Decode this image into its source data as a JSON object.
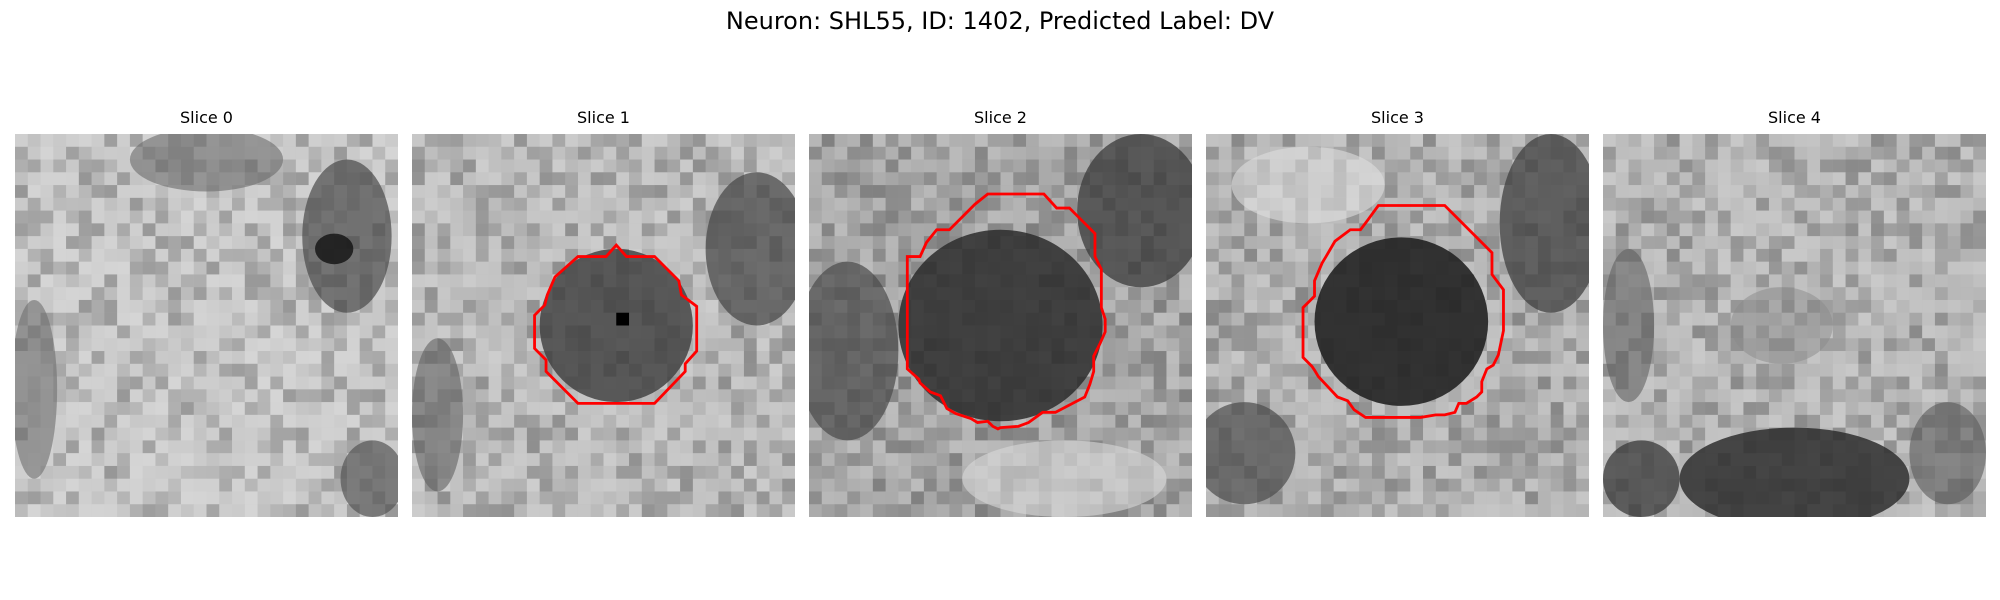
{
  "figure": {
    "title": "Neuron: SHL55, ID: 1402, Predicted Label: DV"
  },
  "colors": {
    "background": "#ffffff",
    "contour": "#ff0000"
  },
  "panels": [
    {
      "title": "Slice 0",
      "has_contour": false
    },
    {
      "title": "Slice 1",
      "has_contour": true
    },
    {
      "title": "Slice 2",
      "has_contour": true
    },
    {
      "title": "Slice 3",
      "has_contour": true
    },
    {
      "title": "Slice 4",
      "has_contour": false
    }
  ]
}
